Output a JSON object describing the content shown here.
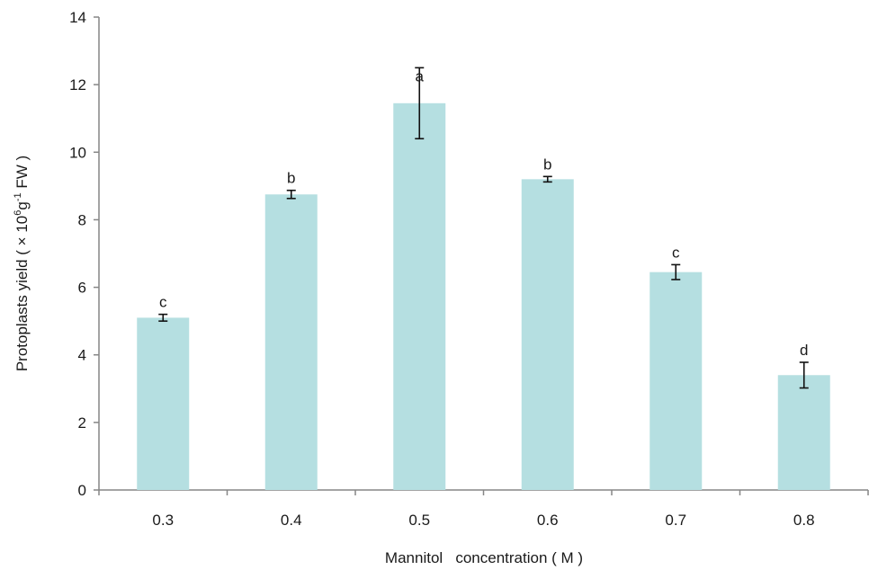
{
  "chart_data": {
    "type": "bar",
    "categories": [
      "0.3",
      "0.4",
      "0.5",
      "0.6",
      "0.7",
      "0.8"
    ],
    "series": [
      {
        "values": [
          5.1,
          8.75,
          11.45,
          9.2,
          6.45,
          3.4
        ],
        "error": [
          0.1,
          0.12,
          1.05,
          0.08,
          0.22,
          0.38
        ],
        "labels": [
          "c",
          "b",
          "a",
          "b",
          "c",
          "d"
        ]
      }
    ],
    "title": "",
    "xlabel": "Mannitol   concentration ( M )",
    "ylabel": {
      "prefix": "Protoplasts yield ( × 10",
      "sup1": "6",
      "mid": "g",
      "sup2": "-1",
      "suffix": " FW )"
    },
    "ylim": [
      0,
      14
    ],
    "yticks": [
      "0",
      "2",
      "4",
      "6",
      "8",
      "10",
      "12",
      "14"
    ],
    "grid": false,
    "legend": "none",
    "colors": {
      "bar": "#b5dfe1",
      "axis": "#868686",
      "error": "#111111"
    }
  }
}
